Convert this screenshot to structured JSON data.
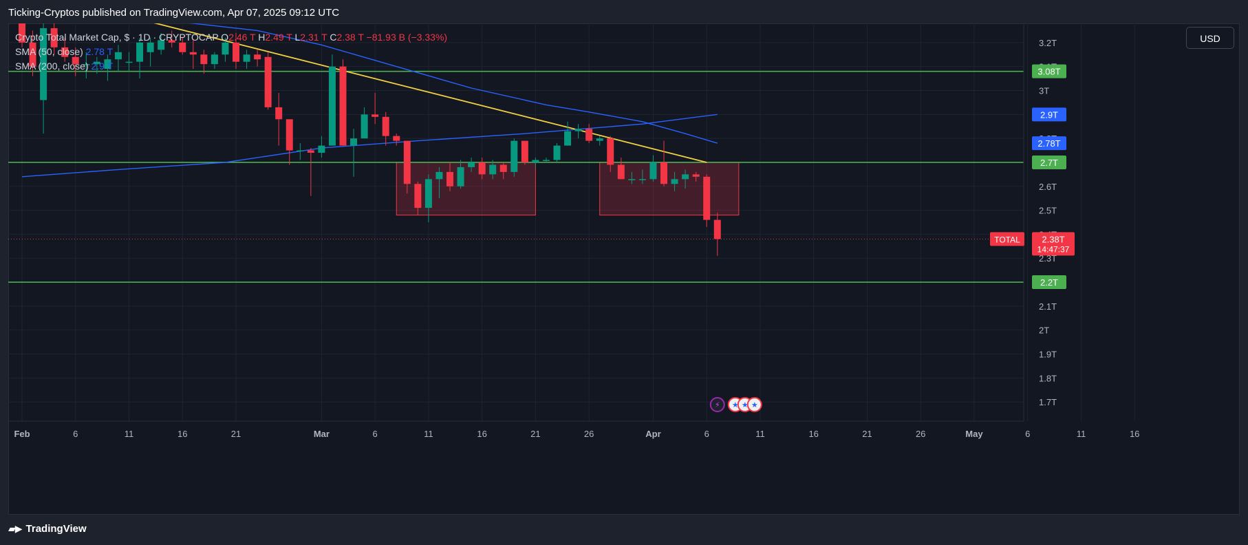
{
  "header": {
    "published_text": "Ticking-Cryptos published on TradingView.com, Apr 07, 2025 09:12 UTC"
  },
  "legend": {
    "symbol": "Crypto Total Market Cap, $ · 1D · CRYPTOCAP",
    "o_label": "O",
    "o_value": "2.46 T",
    "h_label": "H",
    "h_value": "2.49 T",
    "l_label": "L",
    "l_value": "2.31 T",
    "c_label": "C",
    "c_value": "2.38 T",
    "change": "−81.93 B (−3.33%)",
    "sma50_label": "SMA (50, close)",
    "sma50_value": "2.78 T",
    "sma200_label": "SMA (200, close)",
    "sma200_value": "2.9 T"
  },
  "toolbar": {
    "currency": "USD"
  },
  "footer": {
    "brand": "TradingView"
  },
  "colors": {
    "up": "#089981",
    "down": "#f23645",
    "sma50": "#2962ff",
    "trendline": "#f0d040",
    "levels": "#4caf50",
    "zone_fill": "rgba(242,54,69,0.22)",
    "zone_border": "#f23645",
    "background": "#131722",
    "grid": "#1f2431"
  },
  "chart_data": {
    "type": "candlestick",
    "y_unit": "T",
    "ylim": [
      1.62,
      3.28
    ],
    "y_ticks": [
      "1.7T",
      "1.8T",
      "1.9T",
      "2T",
      "2.1T",
      "2.2T",
      "2.3T",
      "2.4T",
      "2.5T",
      "2.6T",
      "2.7T",
      "2.8T",
      "2.9T",
      "3T",
      "3.1T",
      "3.2T"
    ],
    "x_labels": [
      {
        "date": "2025-02-01",
        "label": "Feb"
      },
      {
        "date": "2025-02-06",
        "label": "6"
      },
      {
        "date": "2025-02-11",
        "label": "11"
      },
      {
        "date": "2025-02-16",
        "label": "16"
      },
      {
        "date": "2025-02-21",
        "label": "21"
      },
      {
        "date": "2025-03-01",
        "label": "Mar"
      },
      {
        "date": "2025-03-06",
        "label": "6"
      },
      {
        "date": "2025-03-11",
        "label": "11"
      },
      {
        "date": "2025-03-16",
        "label": "16"
      },
      {
        "date": "2025-03-21",
        "label": "21"
      },
      {
        "date": "2025-03-26",
        "label": "26"
      },
      {
        "date": "2025-04-01",
        "label": "Apr"
      },
      {
        "date": "2025-04-06",
        "label": "6"
      },
      {
        "date": "2025-04-11",
        "label": "11"
      },
      {
        "date": "2025-04-16",
        "label": "16"
      },
      {
        "date": "2025-04-21",
        "label": "21"
      },
      {
        "date": "2025-04-26",
        "label": "26"
      },
      {
        "date": "2025-05-01",
        "label": "May"
      },
      {
        "date": "2025-05-06",
        "label": "6"
      },
      {
        "date": "2025-05-11",
        "label": "11"
      },
      {
        "date": "2025-05-16",
        "label": "16"
      }
    ],
    "candles": [
      [
        "2025-02-01",
        3.28,
        3.3,
        3.18,
        3.2
      ],
      [
        "2025-02-02",
        3.2,
        3.25,
        3.06,
        3.1
      ],
      [
        "2025-02-03",
        2.96,
        3.28,
        2.82,
        3.26
      ],
      [
        "2025-02-04",
        3.26,
        3.28,
        3.15,
        3.18
      ],
      [
        "2025-02-05",
        3.18,
        3.22,
        3.12,
        3.14
      ],
      [
        "2025-02-06",
        3.14,
        3.18,
        3.06,
        3.11
      ],
      [
        "2025-02-07",
        3.11,
        3.16,
        3.05,
        3.11
      ],
      [
        "2025-02-08",
        3.11,
        3.14,
        3.07,
        3.12
      ],
      [
        "2025-02-09",
        3.09,
        3.15,
        3.04,
        3.13
      ],
      [
        "2025-02-10",
        3.13,
        3.19,
        3.08,
        3.16
      ],
      [
        "2025-02-11",
        3.12,
        3.16,
        3.08,
        3.12
      ],
      [
        "2025-02-12",
        3.12,
        3.22,
        3.05,
        3.2
      ],
      [
        "2025-02-13",
        3.16,
        3.22,
        3.1,
        3.2
      ],
      [
        "2025-02-14",
        3.17,
        3.24,
        3.15,
        3.21
      ],
      [
        "2025-02-15",
        3.21,
        3.25,
        3.18,
        3.2
      ],
      [
        "2025-02-16",
        3.2,
        3.22,
        3.15,
        3.16
      ],
      [
        "2025-02-17",
        3.16,
        3.21,
        3.09,
        3.15
      ],
      [
        "2025-02-18",
        3.15,
        3.17,
        3.07,
        3.11
      ],
      [
        "2025-02-19",
        3.11,
        3.16,
        3.09,
        3.15
      ],
      [
        "2025-02-20",
        3.15,
        3.22,
        3.12,
        3.2
      ],
      [
        "2025-02-21",
        3.2,
        3.24,
        3.09,
        3.12
      ],
      [
        "2025-02-22",
        3.12,
        3.17,
        3.09,
        3.15
      ],
      [
        "2025-02-23",
        3.15,
        3.17,
        3.1,
        3.13
      ],
      [
        "2025-02-24",
        3.14,
        3.16,
        2.92,
        2.93
      ],
      [
        "2025-02-25",
        2.93,
        2.99,
        2.77,
        2.88
      ],
      [
        "2025-02-26",
        2.88,
        2.88,
        2.69,
        2.75
      ],
      [
        "2025-02-27",
        2.75,
        2.78,
        2.71,
        2.75
      ],
      [
        "2025-02-28",
        2.75,
        2.76,
        2.56,
        2.74
      ],
      [
        "2025-03-01",
        2.74,
        2.81,
        2.72,
        2.77
      ],
      [
        "2025-03-02",
        2.77,
        3.15,
        2.77,
        3.1
      ],
      [
        "2025-03-03",
        3.1,
        3.13,
        2.77,
        2.77
      ],
      [
        "2025-03-04",
        2.77,
        2.84,
        2.64,
        2.8
      ],
      [
        "2025-03-05",
        2.8,
        2.93,
        2.8,
        2.9
      ],
      [
        "2025-03-06",
        2.9,
        2.99,
        2.86,
        2.89
      ],
      [
        "2025-03-07",
        2.89,
        2.91,
        2.77,
        2.81
      ],
      [
        "2025-03-08",
        2.81,
        2.82,
        2.77,
        2.79
      ],
      [
        "2025-03-09",
        2.79,
        2.79,
        2.57,
        2.61
      ],
      [
        "2025-03-10",
        2.61,
        2.62,
        2.48,
        2.51
      ],
      [
        "2025-03-11",
        2.51,
        2.65,
        2.45,
        2.63
      ],
      [
        "2025-03-12",
        2.63,
        2.68,
        2.55,
        2.66
      ],
      [
        "2025-03-13",
        2.66,
        2.7,
        2.58,
        2.6
      ],
      [
        "2025-03-14",
        2.6,
        2.71,
        2.59,
        2.68
      ],
      [
        "2025-03-15",
        2.68,
        2.72,
        2.66,
        2.7
      ],
      [
        "2025-03-16",
        2.7,
        2.72,
        2.63,
        2.65
      ],
      [
        "2025-03-17",
        2.65,
        2.71,
        2.63,
        2.69
      ],
      [
        "2025-03-18",
        2.69,
        2.7,
        2.63,
        2.66
      ],
      [
        "2025-03-19",
        2.66,
        2.8,
        2.64,
        2.79
      ],
      [
        "2025-03-20",
        2.79,
        2.79,
        2.69,
        2.7
      ],
      [
        "2025-03-21",
        2.7,
        2.72,
        2.68,
        2.71
      ],
      [
        "2025-03-22",
        2.71,
        2.72,
        2.7,
        2.71
      ],
      [
        "2025-03-23",
        2.71,
        2.78,
        2.7,
        2.77
      ],
      [
        "2025-03-24",
        2.77,
        2.87,
        2.77,
        2.83
      ],
      [
        "2025-03-25",
        2.83,
        2.86,
        2.8,
        2.84
      ],
      [
        "2025-03-26",
        2.84,
        2.86,
        2.78,
        2.79
      ],
      [
        "2025-03-27",
        2.79,
        2.81,
        2.77,
        2.8
      ],
      [
        "2025-03-28",
        2.8,
        2.81,
        2.66,
        2.69
      ],
      [
        "2025-03-29",
        2.69,
        2.72,
        2.63,
        2.63
      ],
      [
        "2025-03-30",
        2.63,
        2.66,
        2.61,
        2.63
      ],
      [
        "2025-03-31",
        2.63,
        2.67,
        2.61,
        2.63
      ],
      [
        "2025-04-01",
        2.63,
        2.73,
        2.62,
        2.7
      ],
      [
        "2025-04-02",
        2.7,
        2.79,
        2.6,
        2.61
      ],
      [
        "2025-04-03",
        2.61,
        2.66,
        2.58,
        2.63
      ],
      [
        "2025-04-04",
        2.63,
        2.67,
        2.59,
        2.65
      ],
      [
        "2025-04-05",
        2.65,
        2.66,
        2.62,
        2.64
      ],
      [
        "2025-04-06",
        2.64,
        2.65,
        2.43,
        2.46
      ],
      [
        "2025-04-07",
        2.46,
        2.49,
        2.31,
        2.38
      ]
    ],
    "sma50": [
      [
        "2025-02-01",
        3.32
      ],
      [
        "2025-02-13",
        3.3
      ],
      [
        "2025-02-23",
        3.25
      ],
      [
        "2025-03-01",
        3.19
      ],
      [
        "2025-03-08",
        3.1
      ],
      [
        "2025-03-15",
        3.01
      ],
      [
        "2025-03-22",
        2.94
      ],
      [
        "2025-03-26",
        2.91
      ],
      [
        "2025-03-31",
        2.87
      ],
      [
        "2025-04-04",
        2.82
      ],
      [
        "2025-04-07",
        2.78
      ]
    ],
    "sma200": [
      [
        "2025-02-01",
        2.64
      ],
      [
        "2025-02-10",
        2.67
      ],
      [
        "2025-02-20",
        2.7
      ],
      [
        "2025-03-01",
        2.76
      ],
      [
        "2025-03-10",
        2.79
      ],
      [
        "2025-03-20",
        2.82
      ],
      [
        "2025-03-31",
        2.86
      ],
      [
        "2025-04-07",
        2.9
      ]
    ],
    "trendline": [
      [
        "2025-02-10",
        3.32
      ],
      [
        "2025-04-06",
        2.7
      ]
    ],
    "horizontal_levels": [
      {
        "value": 3.08,
        "label": "3.08T"
      },
      {
        "value": 2.7,
        "label": "2.7T"
      },
      {
        "value": 2.2,
        "label": "2.2T"
      }
    ],
    "zones": [
      {
        "from": "2025-03-08",
        "to": "2025-03-21",
        "top": 2.7,
        "bottom": 2.48
      },
      {
        "from": "2025-03-27",
        "to": "2025-04-09",
        "top": 2.7,
        "bottom": 2.48
      }
    ],
    "price_tags": [
      {
        "value": 2.9,
        "label": "2.9T",
        "color": "#2962ff"
      },
      {
        "value": 2.78,
        "label": "2.78T",
        "color": "#2962ff"
      }
    ],
    "last_price": {
      "value": 2.38,
      "label": "2.38T",
      "countdown": "14:47:37",
      "series_tag": "TOTAL"
    },
    "event_markers": [
      "bolt-icon",
      "us-flag-icon",
      "us-flag-icon",
      "us-flag-icon"
    ]
  }
}
